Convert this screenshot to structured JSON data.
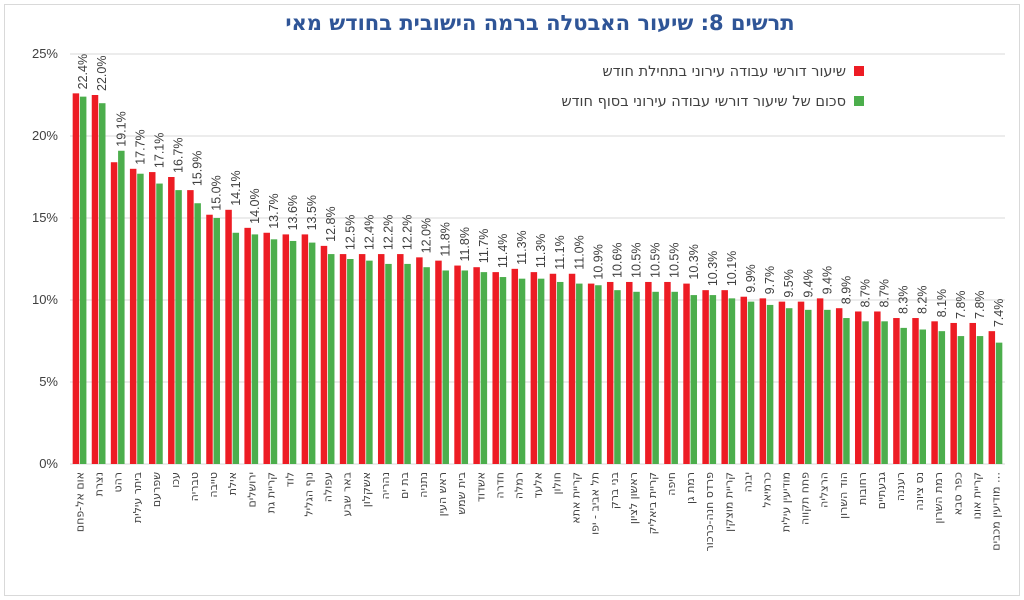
{
  "chart_data": {
    "type": "bar",
    "title": "תרשים 8: שיעור האבטלה ברמה הישובית בחודש מאי",
    "ylim": [
      0,
      25
    ],
    "y_ticks": [
      "0%",
      "5%",
      "10%",
      "15%",
      "20%",
      "25%"
    ],
    "grid": true,
    "legend_position": "top-right",
    "categories": [
      "אום אל-פחם",
      "נצרת",
      "רהט",
      "ביתר עילית",
      "שפרעם",
      "עכו",
      "טבריה",
      "טייבה",
      "אילת",
      "ירושלים",
      "קריית גת",
      "לוד",
      "נוף הגליל",
      "עפולה",
      "באר שבע",
      "אשקלון",
      "נהריה",
      "בת ים",
      "נתניה",
      "ראש העין",
      "בית שמש",
      "אשדוד",
      "חדרה",
      "רמלה",
      "אלעד",
      "חולון",
      "קריית אתא",
      "תל אביב - יפו",
      "בני ברק",
      "ראשון לציון",
      "קריית ביאליק",
      "חיפה",
      "רמת גן",
      "פרדס חנה-כרכור",
      "קריית מוצקין",
      "יבנה",
      "כרמיאל",
      "מודיעין עילית",
      "פתח תקווה",
      "הרצליה",
      "הוד השרון",
      "רחובות",
      "גבעתיים",
      "רעננה",
      "נס ציונה",
      "רמת השרון",
      "כפר סבא",
      "קריית אונו",
      "מודיעין מכבים …"
    ],
    "series": [
      {
        "name": "שיעור דורשי עבודה עירוני בתחילת חודש",
        "color": "#ed1c24",
        "values": [
          22.6,
          22.5,
          18.4,
          18.0,
          17.8,
          17.5,
          16.7,
          15.2,
          15.5,
          14.4,
          14.1,
          14.0,
          14.0,
          13.3,
          12.8,
          12.8,
          12.8,
          12.8,
          12.6,
          12.4,
          12.1,
          12.0,
          11.7,
          11.9,
          11.7,
          11.6,
          11.6,
          11.0,
          11.1,
          11.1,
          11.1,
          11.1,
          11.0,
          10.6,
          10.6,
          10.2,
          10.1,
          9.9,
          9.9,
          10.1,
          9.5,
          9.3,
          9.3,
          8.9,
          8.9,
          8.7,
          8.6,
          8.6,
          8.1
        ],
        "labels_shown": false
      },
      {
        "name": "סכום של שיעור דורשי עבודה עירוני בסוף חודש",
        "color": "#4cae4c",
        "values": [
          22.4,
          22.0,
          19.1,
          17.7,
          17.1,
          16.7,
          15.9,
          15.0,
          14.1,
          14.0,
          13.7,
          13.6,
          13.5,
          12.8,
          12.5,
          12.4,
          12.2,
          12.2,
          12.0,
          11.8,
          11.8,
          11.7,
          11.4,
          11.3,
          11.3,
          11.1,
          11.0,
          10.9,
          10.6,
          10.5,
          10.5,
          10.5,
          10.3,
          10.3,
          10.1,
          9.9,
          9.7,
          9.5,
          9.4,
          9.4,
          8.9,
          8.7,
          8.7,
          8.3,
          8.2,
          8.1,
          7.8,
          7.8,
          7.4
        ],
        "data_labels": [
          "22.4%",
          "22.0%",
          "19.1%",
          "17.7%",
          "17.1%",
          "16.7%",
          "15.9%",
          "15.0%",
          "14.1%",
          "14.0%",
          "13.7%",
          "13.6%",
          "13.5%",
          "12.8%",
          "12.5%",
          "12.4%",
          "12.2%",
          "12.2%",
          "12.0%",
          "11.8%",
          "11.8%",
          "11.7%",
          "11.4%",
          "11.3%",
          "11.3%",
          "11.1%",
          "11.0%",
          "10.9%",
          "10.6%",
          "10.5%",
          "10.5%",
          "10.5%",
          "10.3%",
          "10.3%",
          "10.1%",
          "9.9%",
          "9.7%",
          "9.5%",
          "9.4%",
          "9.4%",
          "8.9%",
          "8.7%",
          "8.7%",
          "8.3%",
          "8.2%",
          "8.1%",
          "7.8%",
          "7.8%",
          "7.4%"
        ]
      }
    ]
  }
}
